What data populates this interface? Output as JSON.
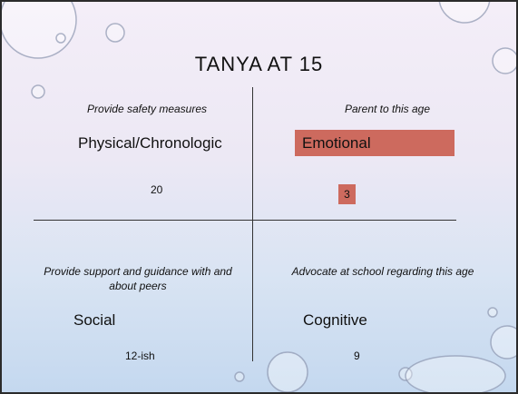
{
  "title": "TANYA AT 15",
  "quadrants": [
    {
      "note": "Provide safety measures",
      "label": "Physical/Chronologic",
      "value": "20"
    },
    {
      "note": "Parent to this age",
      "label": "Emotional",
      "value": "3"
    },
    {
      "note": "Provide support and guidance with and about peers",
      "label": "Social",
      "value": "12-ish"
    },
    {
      "note": "Advocate at school regarding this age",
      "label": "Cognitive",
      "value": "9"
    }
  ]
}
